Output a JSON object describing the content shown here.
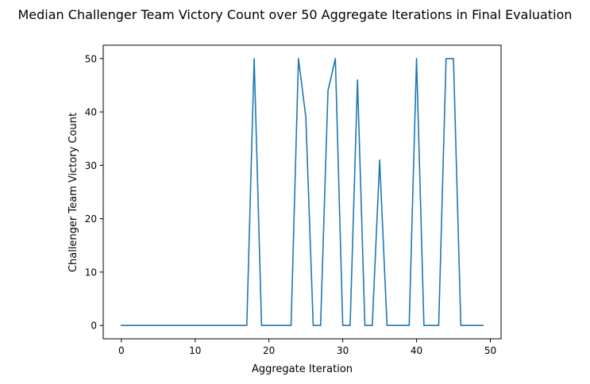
{
  "chart_data": {
    "type": "line",
    "title": "Median Challenger Team Victory Count over 50 Aggregate Iterations in Final Evaluation",
    "xlabel": "Aggregate Iteration",
    "ylabel": "Challenger Team Victory Count",
    "xlim": [
      -2.45,
      51.45
    ],
    "ylim": [
      -2.5,
      52.5
    ],
    "x_ticks": [
      0,
      10,
      20,
      30,
      40,
      50
    ],
    "y_ticks": [
      0,
      10,
      20,
      30,
      40,
      50
    ],
    "grid": false,
    "legend": "none",
    "series": [
      {
        "color": "#1f77b4",
        "x": [
          0,
          1,
          2,
          3,
          4,
          5,
          6,
          7,
          8,
          9,
          10,
          11,
          12,
          13,
          14,
          15,
          16,
          17,
          18,
          19,
          20,
          21,
          22,
          23,
          24,
          25,
          26,
          27,
          28,
          29,
          30,
          31,
          32,
          33,
          34,
          35,
          36,
          37,
          38,
          39,
          40,
          41,
          42,
          43,
          44,
          45,
          46,
          47,
          48,
          49
        ],
        "y": [
          0,
          0,
          0,
          0,
          0,
          0,
          0,
          0,
          0,
          0,
          0,
          0,
          0,
          0,
          0,
          0,
          0,
          0,
          50,
          0,
          0,
          0,
          0,
          0,
          50,
          39,
          0,
          0,
          44,
          50,
          0,
          0,
          46,
          0,
          0,
          31,
          0,
          0,
          0,
          0,
          50,
          0,
          0,
          0,
          50,
          50,
          0,
          0,
          0,
          0
        ]
      }
    ]
  }
}
